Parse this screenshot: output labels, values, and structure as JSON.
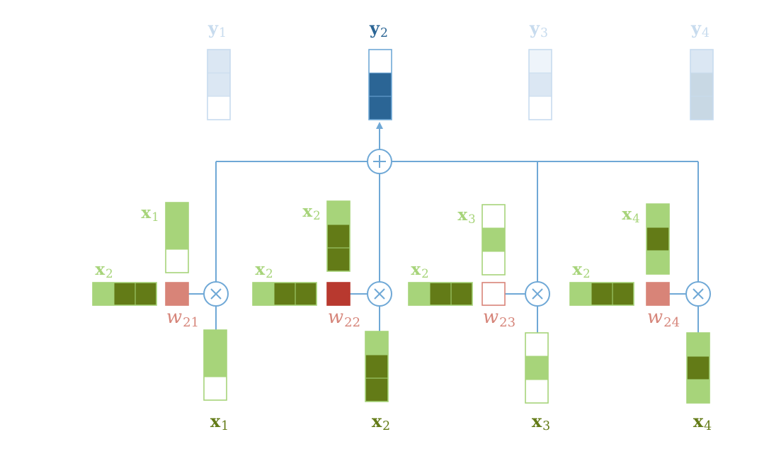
{
  "colors": {
    "blue": "#6fa8d6",
    "blue_dark": "#2b6595",
    "blue_fade": "#dbe7f3",
    "blue_fade_border": "#c7dbee",
    "blue_very_fade": "#eef4fa",
    "gray_fade": "#c8d8e4",
    "green_light": "#a7d47a",
    "green_dark": "#637b17",
    "green_border": "#a7d47a",
    "red_light": "#d88478",
    "red_dark": "#b8392f",
    "red_label": "#d6857a",
    "white": "#ffffff"
  },
  "outputs": [
    {
      "label": "𝐲",
      "sub": "1",
      "emphasis": false,
      "cells": [
        "fade",
        "fade",
        "white"
      ]
    },
    {
      "label": "𝐲",
      "sub": "2",
      "emphasis": true,
      "cells": [
        "white",
        "dark",
        "dark"
      ]
    },
    {
      "label": "𝐲",
      "sub": "3",
      "emphasis": false,
      "cells": [
        "veryfade",
        "fade",
        "white"
      ]
    },
    {
      "label": "𝐲",
      "sub": "4",
      "emphasis": false,
      "cells": [
        "fade",
        "gray",
        "gray"
      ]
    }
  ],
  "sum_symbol": "+",
  "mult_symbol": "×",
  "units": [
    {
      "query_label": "𝐱",
      "query_sub": "2",
      "query_cells": [
        "light",
        "dark",
        "dark"
      ],
      "key_label": "𝐱",
      "key_sub": "1",
      "key_cells": [
        "light",
        "light",
        "white"
      ],
      "weight_label": "w",
      "weight_sub": "21",
      "weight_style": "light",
      "value_label": "𝐱",
      "value_sub": "1",
      "value_cells": [
        "light",
        "light",
        "white"
      ]
    },
    {
      "query_label": "𝐱",
      "query_sub": "2",
      "query_cells": [
        "light",
        "dark",
        "dark"
      ],
      "key_label": "𝐱",
      "key_sub": "2",
      "key_cells": [
        "light",
        "dark",
        "dark"
      ],
      "weight_label": "w",
      "weight_sub": "22",
      "weight_style": "dark",
      "value_label": "𝐱",
      "value_sub": "2",
      "value_cells": [
        "light",
        "dark",
        "dark"
      ]
    },
    {
      "query_label": "𝐱",
      "query_sub": "2",
      "query_cells": [
        "light",
        "dark",
        "dark"
      ],
      "key_label": "𝐱",
      "key_sub": "3",
      "key_cells": [
        "white",
        "light",
        "white"
      ],
      "weight_label": "w",
      "weight_sub": "23",
      "weight_style": "white",
      "value_label": "𝐱",
      "value_sub": "3",
      "value_cells": [
        "white",
        "light",
        "white"
      ]
    },
    {
      "query_label": "𝐱",
      "query_sub": "2",
      "query_cells": [
        "light",
        "dark",
        "dark"
      ],
      "key_label": "𝐱",
      "key_sub": "4",
      "key_cells": [
        "light",
        "dark",
        "light"
      ],
      "weight_label": "w",
      "weight_sub": "24",
      "weight_style": "light",
      "value_label": "𝐱",
      "value_sub": "4",
      "value_cells": [
        "light",
        "dark",
        "light"
      ]
    }
  ]
}
